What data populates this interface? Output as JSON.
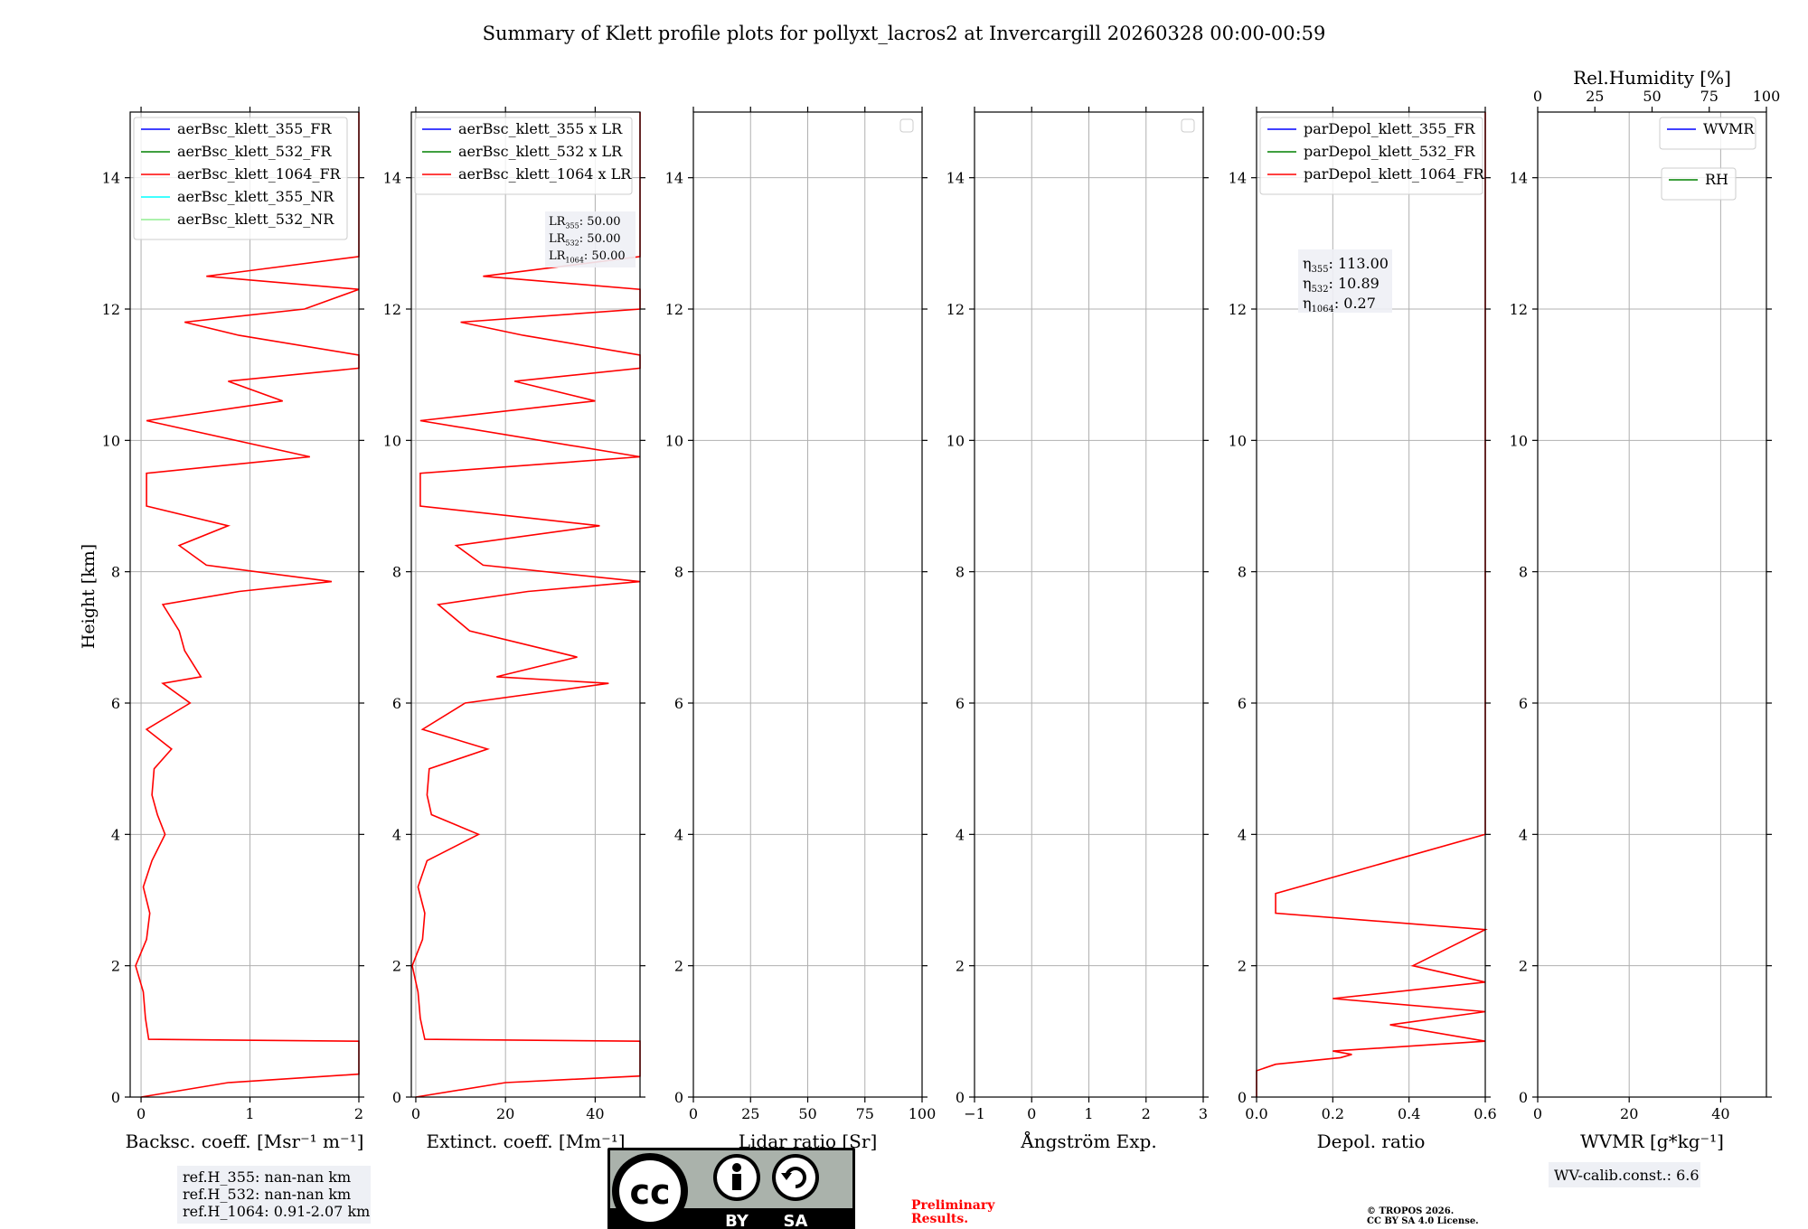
{
  "figure": {
    "title": "Summary of Klett profile plots for pollyxt_lacros2 at Invercargill 20260328 00:00-00:59",
    "ylabel": "Height [km]"
  },
  "chart_data": [
    {
      "type": "line",
      "panel": "backscatter",
      "xlabel": "Backsc. coeff. [Msr⁻¹ m⁻¹]",
      "xlim": [
        -0.1,
        2
      ],
      "xticks": [
        0,
        1,
        2
      ],
      "ylim": [
        0,
        15
      ],
      "yticks": [
        0,
        2,
        4,
        6,
        8,
        10,
        12,
        14
      ],
      "grid": true,
      "legend": {
        "position": "top-left",
        "entries": [
          {
            "name": "aerBsc_klett_355_FR",
            "color": "#0000ff"
          },
          {
            "name": "aerBsc_klett_532_FR",
            "color": "#008000"
          },
          {
            "name": "aerBsc_klett_1064_FR",
            "color": "#ff0000"
          },
          {
            "name": "aerBsc_klett_355_NR",
            "color": "#00ffff"
          },
          {
            "name": "aerBsc_klett_532_NR",
            "color": "#90ee90"
          }
        ]
      },
      "series": [
        {
          "name": "aerBsc_klett_1064_FR",
          "color": "#ff0000",
          "points": [
            [
              0.0,
              0.0
            ],
            [
              0.8,
              0.22
            ],
            [
              2.0,
              0.35
            ],
            [
              2.0,
              0.85
            ],
            [
              0.07,
              0.88
            ],
            [
              0.04,
              1.2
            ],
            [
              0.02,
              1.6
            ],
            [
              -0.05,
              2.0
            ],
            [
              0.05,
              2.4
            ],
            [
              0.08,
              2.8
            ],
            [
              0.02,
              3.2
            ],
            [
              0.1,
              3.6
            ],
            [
              0.22,
              4.0
            ],
            [
              0.15,
              4.3
            ],
            [
              0.1,
              4.6
            ],
            [
              0.12,
              5.0
            ],
            [
              0.28,
              5.3
            ],
            [
              0.05,
              5.6
            ],
            [
              0.45,
              6.0
            ],
            [
              0.2,
              6.3
            ],
            [
              0.55,
              6.4
            ],
            [
              0.4,
              6.8
            ],
            [
              0.35,
              7.1
            ],
            [
              0.2,
              7.5
            ],
            [
              0.9,
              7.7
            ],
            [
              1.75,
              7.85
            ],
            [
              0.6,
              8.1
            ],
            [
              0.35,
              8.4
            ],
            [
              0.8,
              8.7
            ],
            [
              0.05,
              9.0
            ],
            [
              0.05,
              9.5
            ],
            [
              1.55,
              9.75
            ],
            [
              0.05,
              10.3
            ],
            [
              1.3,
              10.6
            ],
            [
              0.8,
              10.9
            ],
            [
              2.0,
              11.1
            ],
            [
              2.0,
              11.3
            ],
            [
              0.9,
              11.6
            ],
            [
              0.4,
              11.8
            ],
            [
              1.5,
              12.0
            ],
            [
              2.0,
              12.3
            ],
            [
              0.6,
              12.5
            ],
            [
              2.0,
              12.8
            ],
            [
              2.0,
              13.1
            ],
            [
              2.0,
              14.0
            ],
            [
              2.0,
              14.6
            ],
            [
              2.0,
              15.0
            ]
          ]
        }
      ],
      "annotation": {
        "position": "below-axis",
        "lines": [
          "ref.H_355: nan-nan km",
          "ref.H_532: nan-nan km",
          "ref.H_1064: 0.91-2.07 km"
        ]
      }
    },
    {
      "type": "line",
      "panel": "extinction",
      "xlabel": "Extinct. coeff. [Mm⁻¹]",
      "xlim": [
        -1,
        50
      ],
      "xticks": [
        0,
        20,
        40
      ],
      "ylim": [
        0,
        15
      ],
      "yticks": [
        0,
        2,
        4,
        6,
        8,
        10,
        12,
        14
      ],
      "grid": true,
      "legend": {
        "position": "top-left",
        "entries": [
          {
            "name": "aerBsc_klett_355 x LR",
            "color": "#0000ff"
          },
          {
            "name": "aerBsc_klett_532 x LR",
            "color": "#008000"
          },
          {
            "name": "aerBsc_klett_1064 x LR",
            "color": "#ff0000"
          }
        ]
      },
      "lr_labels": [
        {
          "label": "LR",
          "sub": "355",
          "value": ": 50.00"
        },
        {
          "label": "LR",
          "sub": "532",
          "value": ": 50.00"
        },
        {
          "label": "LR",
          "sub": "1064",
          "value": ": 50.00"
        }
      ],
      "series": [
        {
          "name": "aerBsc_klett_1064 x LR",
          "color": "#ff0000",
          "points": [
            [
              0.0,
              0.0
            ],
            [
              20.0,
              0.22
            ],
            [
              50.0,
              0.32
            ],
            [
              50.0,
              0.85
            ],
            [
              2.0,
              0.88
            ],
            [
              1.0,
              1.2
            ],
            [
              0.5,
              1.6
            ],
            [
              -0.8,
              2.0
            ],
            [
              1.5,
              2.4
            ],
            [
              2.0,
              2.8
            ],
            [
              0.5,
              3.2
            ],
            [
              2.5,
              3.6
            ],
            [
              14.0,
              4.0
            ],
            [
              3.5,
              4.3
            ],
            [
              2.5,
              4.6
            ],
            [
              3.0,
              5.0
            ],
            [
              16.0,
              5.3
            ],
            [
              1.5,
              5.6
            ],
            [
              11.0,
              6.0
            ],
            [
              43.0,
              6.3
            ],
            [
              18.0,
              6.4
            ],
            [
              36.0,
              6.7
            ],
            [
              12.0,
              7.1
            ],
            [
              5.0,
              7.5
            ],
            [
              25.0,
              7.7
            ],
            [
              50.0,
              7.85
            ],
            [
              15.0,
              8.1
            ],
            [
              9.0,
              8.4
            ],
            [
              41.0,
              8.7
            ],
            [
              1.0,
              9.0
            ],
            [
              1.0,
              9.5
            ],
            [
              50.0,
              9.75
            ],
            [
              1.0,
              10.3
            ],
            [
              40.0,
              10.6
            ],
            [
              22.0,
              10.9
            ],
            [
              50.0,
              11.1
            ],
            [
              50.0,
              11.3
            ],
            [
              24.0,
              11.6
            ],
            [
              10.0,
              11.8
            ],
            [
              50.0,
              12.0
            ],
            [
              50.0,
              12.3
            ],
            [
              15.0,
              12.5
            ],
            [
              50.0,
              12.8
            ],
            [
              50.0,
              13.1
            ],
            [
              50.0,
              14.0
            ],
            [
              50.0,
              14.6
            ],
            [
              50.0,
              15.0
            ]
          ]
        }
      ]
    },
    {
      "type": "line",
      "panel": "lidar-ratio",
      "xlabel": "Lidar ratio [Sr]",
      "xlim": [
        0,
        100
      ],
      "xticks": [
        0,
        25,
        50,
        75,
        100
      ],
      "ylim": [
        0,
        15
      ],
      "yticks": [
        0,
        2,
        4,
        6,
        8,
        10,
        12,
        14
      ],
      "grid": true,
      "legend": {
        "position": "top-right",
        "entries": []
      },
      "series": []
    },
    {
      "type": "line",
      "panel": "angstrom",
      "xlabel": "Ångström Exp.",
      "xlim": [
        -1,
        3
      ],
      "xticks": [
        -1,
        0,
        1,
        2,
        3
      ],
      "xtick_labels": [
        "−1",
        "0",
        "1",
        "2",
        "3"
      ],
      "ylim": [
        0,
        15
      ],
      "yticks": [
        0,
        2,
        4,
        6,
        8,
        10,
        12,
        14
      ],
      "grid": true,
      "legend": {
        "position": "top-right",
        "entries": []
      },
      "series": []
    },
    {
      "type": "line",
      "panel": "depol",
      "xlabel": "Depol. ratio",
      "xlim": [
        0,
        0.6
      ],
      "xticks": [
        0,
        0.2,
        0.4,
        0.6
      ],
      "xtick_labels": [
        "0.0",
        "0.2",
        "0.4",
        "0.6"
      ],
      "ylim": [
        0,
        15
      ],
      "yticks": [
        0,
        2,
        4,
        6,
        8,
        10,
        12,
        14
      ],
      "grid": true,
      "legend": {
        "position": "top-left",
        "entries": [
          {
            "name": "parDepol_klett_355_FR",
            "color": "#0000ff"
          },
          {
            "name": "parDepol_klett_532_FR",
            "color": "#008000"
          },
          {
            "name": "parDepol_klett_1064_FR",
            "color": "#ff0000"
          }
        ]
      },
      "eta_labels": [
        {
          "label": "η",
          "sub": "355",
          "value": ": 113.00"
        },
        {
          "label": "η",
          "sub": "532",
          "value": ": 10.89"
        },
        {
          "label": "η",
          "sub": "1064",
          "value": ": 0.27"
        }
      ],
      "series": [
        {
          "name": "parDepol_klett_1064_FR",
          "color": "#ff0000",
          "points": [
            [
              0.0,
              0.0
            ],
            [
              0.0,
              0.4
            ],
            [
              0.05,
              0.5
            ],
            [
              0.22,
              0.6
            ],
            [
              0.25,
              0.65
            ],
            [
              0.2,
              0.7
            ],
            [
              0.6,
              0.85
            ],
            [
              0.35,
              1.1
            ],
            [
              0.6,
              1.3
            ],
            [
              0.2,
              1.5
            ],
            [
              0.6,
              1.75
            ],
            [
              0.41,
              2.0
            ],
            [
              0.6,
              2.55
            ],
            [
              0.05,
              2.8
            ],
            [
              0.05,
              3.1
            ],
            [
              0.6,
              4.0
            ],
            [
              0.6,
              4.3
            ],
            [
              0.6,
              4.8
            ],
            [
              0.6,
              5.2
            ],
            [
              0.6,
              5.6
            ],
            [
              0.6,
              6.0
            ],
            [
              0.6,
              6.5
            ],
            [
              0.6,
              7.0
            ],
            [
              0.6,
              7.5
            ],
            [
              0.6,
              7.8
            ],
            [
              0.6,
              8.0
            ],
            [
              0.6,
              8.8
            ],
            [
              0.6,
              9.0
            ],
            [
              0.6,
              9.4
            ],
            [
              0.6,
              9.7
            ],
            [
              0.6,
              10.2
            ],
            [
              0.6,
              11.0
            ],
            [
              0.6,
              11.5
            ],
            [
              0.6,
              12.0
            ],
            [
              0.6,
              12.5
            ],
            [
              0.6,
              13.0
            ],
            [
              0.6,
              13.5
            ],
            [
              0.6,
              14.0
            ],
            [
              0.6,
              14.5
            ],
            [
              0.6,
              15.0
            ]
          ]
        }
      ]
    },
    {
      "type": "line",
      "panel": "wvmr",
      "xlabel": "WVMR [g*kg⁻¹]",
      "xlim": [
        0,
        50
      ],
      "xticks": [
        0,
        20,
        40
      ],
      "top_axis": {
        "label": "Rel.Humidity [%]",
        "ticks": [
          0,
          25,
          50,
          75,
          100
        ],
        "xlim": [
          0,
          100
        ]
      },
      "ylim": [
        0,
        15
      ],
      "yticks": [
        0,
        2,
        4,
        6,
        8,
        10,
        12,
        14
      ],
      "grid": true,
      "legends": [
        {
          "position": "top-right",
          "entries": [
            {
              "name": "WVMR",
              "color": "#0000ff"
            }
          ]
        },
        {
          "position": "top-right",
          "entries": [
            {
              "name": "RH",
              "color": "#008000"
            }
          ]
        }
      ],
      "series": [],
      "annotation": {
        "position": "below-axis",
        "lines": [
          "WV-calib.const.: 6.6"
        ]
      }
    }
  ],
  "footer": {
    "license_badge": {
      "cc": "cc",
      "by": "BY",
      "sa": "SA",
      "colors": {
        "gray": "#aab2ab",
        "dark": "#000000"
      }
    },
    "preliminary": [
      "Preliminary",
      "Results."
    ],
    "copyright": [
      "© TROPOS 2026.",
      "CC BY SA 4.0 License."
    ]
  },
  "colors": {
    "red": "#ff0000",
    "blue": "#0000ff",
    "green": "#008000",
    "grid": "#b0b0b0",
    "annotation_bg": "#eef0f5"
  }
}
